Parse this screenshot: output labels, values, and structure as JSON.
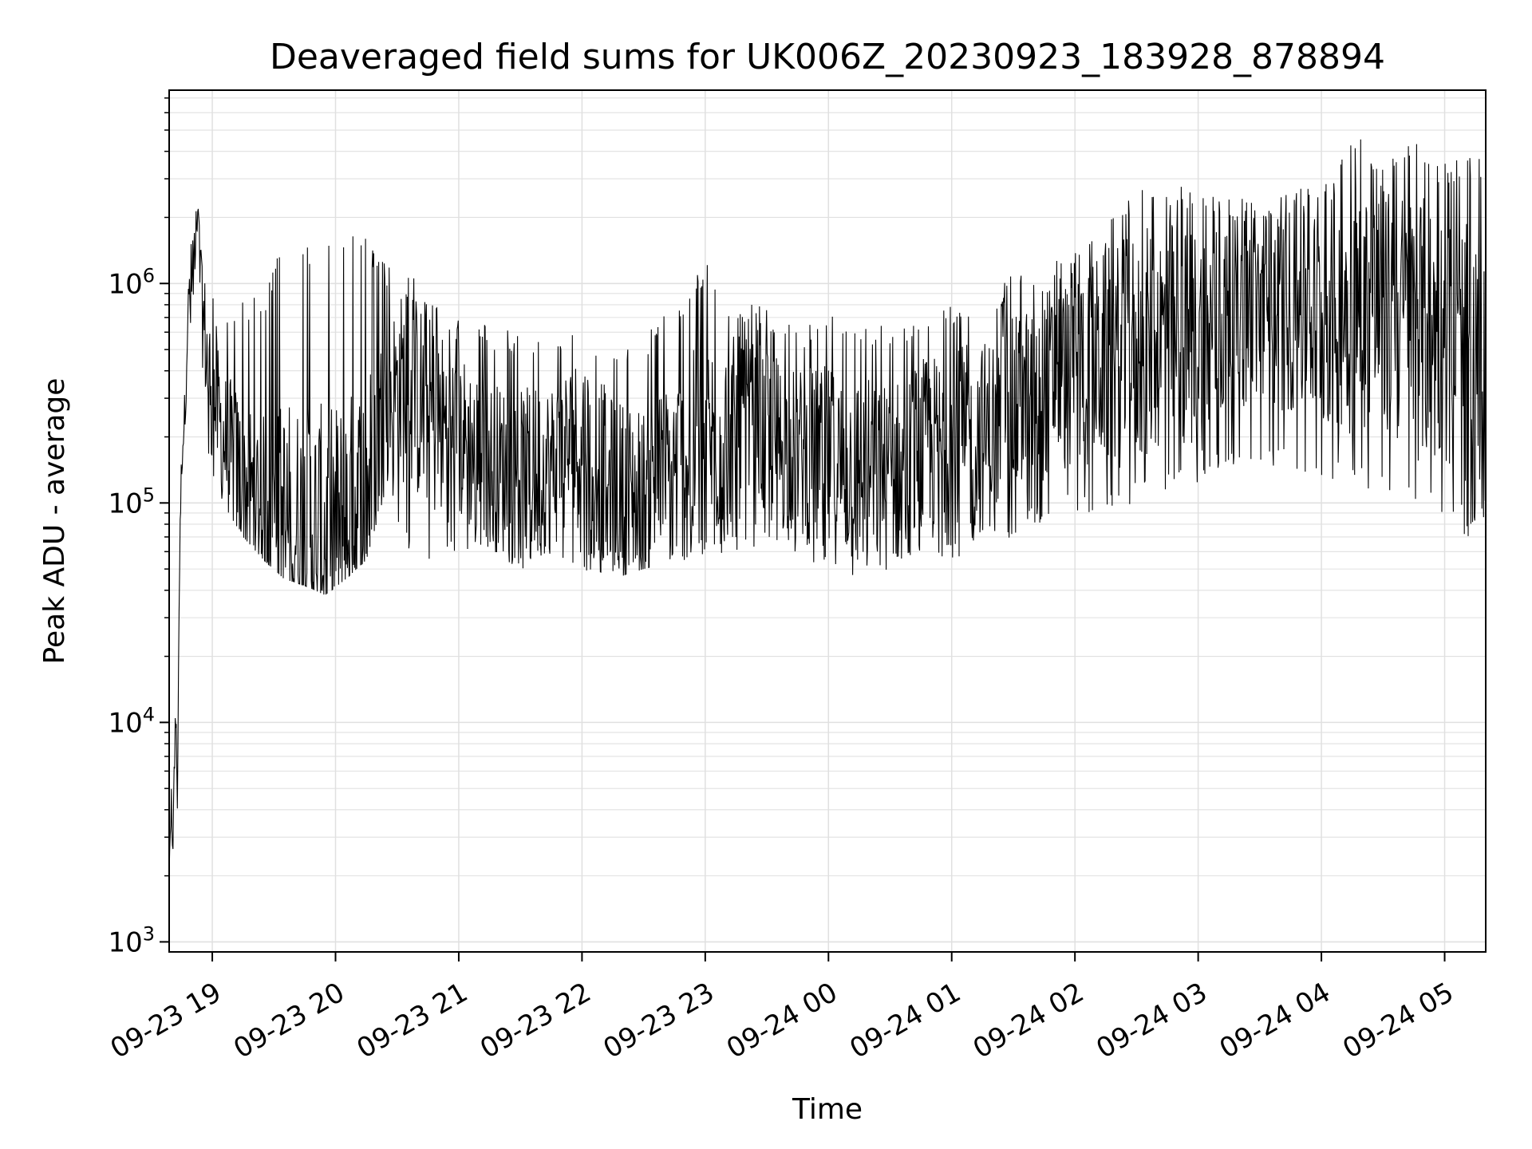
{
  "chart_data": {
    "type": "line",
    "title": "Deaveraged field sums for UK006Z_20230923_183928_878894",
    "xlabel": "Time",
    "ylabel": "Peak ADU - average",
    "yscale": "log",
    "ylim": [
      900,
      7600000
    ],
    "xlim": [
      "2023-09-23 18:39",
      "2023-09-24 05:20"
    ],
    "grid": true,
    "line_color": "#000000",
    "grid_color": "#e0e0e0",
    "x_ticks": [
      {
        "t": "2023-09-23 19:00",
        "label": "09-23 19"
      },
      {
        "t": "2023-09-23 20:00",
        "label": "09-23 20"
      },
      {
        "t": "2023-09-23 21:00",
        "label": "09-23 21"
      },
      {
        "t": "2023-09-23 22:00",
        "label": "09-23 22"
      },
      {
        "t": "2023-09-23 23:00",
        "label": "09-23 23"
      },
      {
        "t": "2023-09-24 00:00",
        "label": "09-24 00"
      },
      {
        "t": "2023-09-24 01:00",
        "label": "09-24 01"
      },
      {
        "t": "2023-09-24 02:00",
        "label": "09-24 02"
      },
      {
        "t": "2023-09-24 03:00",
        "label": "09-24 03"
      },
      {
        "t": "2023-09-24 04:00",
        "label": "09-24 04"
      },
      {
        "t": "2023-09-24 05:00",
        "label": "09-24 05"
      }
    ],
    "y_ticks": [
      {
        "value": 1000,
        "base": "10",
        "exp": "3"
      },
      {
        "value": 10000,
        "base": "10",
        "exp": "4"
      },
      {
        "value": 100000,
        "base": "10",
        "exp": "5"
      },
      {
        "value": 1000000,
        "base": "10",
        "exp": "6"
      }
    ],
    "series": [
      {
        "x": [
          "2023-09-23 18:39",
          "2023-09-23 18:40",
          "2023-09-23 18:41",
          "2023-09-23 18:42",
          "2023-09-23 18:43",
          "2023-09-23 18:44",
          "2023-09-23 18:45",
          "2023-09-23 18:47",
          "2023-09-23 18:48",
          "2023-09-23 18:50",
          "2023-09-23 18:53",
          "2023-09-23 18:55",
          "2023-09-23 18:58",
          "2023-09-23 19:05",
          "2023-09-23 19:15",
          "2023-09-23 19:25",
          "2023-09-23 19:35",
          "2023-09-23 19:45",
          "2023-09-23 19:55",
          "2023-09-23 20:05",
          "2023-09-23 20:15",
          "2023-09-23 20:25",
          "2023-09-23 20:35",
          "2023-09-23 20:45",
          "2023-09-23 21:00",
          "2023-09-23 21:15",
          "2023-09-23 21:30",
          "2023-09-23 21:45",
          "2023-09-23 22:00",
          "2023-09-23 22:15",
          "2023-09-23 22:30",
          "2023-09-23 22:45",
          "2023-09-23 23:00",
          "2023-09-23 23:15",
          "2023-09-23 23:30",
          "2023-09-23 23:45",
          "2023-09-24 00:00",
          "2023-09-24 00:15",
          "2023-09-24 00:30",
          "2023-09-24 00:45",
          "2023-09-24 01:00",
          "2023-09-24 01:15",
          "2023-09-24 01:30",
          "2023-09-24 01:45",
          "2023-09-24 02:00",
          "2023-09-24 02:15",
          "2023-09-24 02:30",
          "2023-09-24 02:45",
          "2023-09-24 03:00",
          "2023-09-24 03:15",
          "2023-09-24 03:30",
          "2023-09-24 03:45",
          "2023-09-24 04:00",
          "2023-09-24 04:15",
          "2023-09-24 04:30",
          "2023-09-24 04:45",
          "2023-09-24 05:00",
          "2023-09-24 05:10",
          "2023-09-24 05:20"
        ],
        "y": [
          2000,
          4000,
          3000,
          12000,
          5000,
          50000,
          150000,
          300000,
          700000,
          900000,
          1500000,
          800000,
          400000,
          200000,
          120000,
          90000,
          80000,
          75000,
          70000,
          80000,
          110000,
          300000,
          350000,
          250000,
          200000,
          150000,
          130000,
          150000,
          200000,
          120000,
          110000,
          140000,
          180000,
          220000,
          200000,
          170000,
          150000,
          140000,
          130000,
          170000,
          180000,
          200000,
          250000,
          350000,
          400000,
          450000,
          500000,
          600000,
          550000,
          700000,
          800000,
          750000,
          700000,
          800000,
          750000,
          650000,
          550000,
          400000,
          300000
        ],
        "y_lower": [
          2000,
          3000,
          2600,
          8000,
          4000,
          35000,
          120000,
          250000,
          400000,
          300000,
          300000,
          250000,
          150000,
          100000,
          70000,
          55000,
          45000,
          42000,
          38000,
          45000,
          55000,
          120000,
          60000,
          55000,
          60000,
          60000,
          50000,
          50000,
          50000,
          45000,
          50000,
          55000,
          55000,
          60000,
          60000,
          55000,
          50000,
          45000,
          45000,
          50000,
          50000,
          60000,
          70000,
          80000,
          90000,
          90000,
          100000,
          110000,
          120000,
          150000,
          150000,
          140000,
          130000,
          120000,
          110000,
          100000,
          90000,
          60000,
          90000
        ],
        "y_upper": [
          2000,
          8000,
          6000,
          13000,
          12000,
          60000,
          200000,
          500000,
          900000,
          1800000,
          2300000,
          1200000,
          1000000,
          700000,
          900000,
          900000,
          1600000,
          1500000,
          1600000,
          1700000,
          1700000,
          1200000,
          1100000,
          1000000,
          700000,
          650000,
          600000,
          550000,
          600000,
          550000,
          600000,
          800000,
          1300000,
          800000,
          800000,
          600000,
          800000,
          700000,
          650000,
          700000,
          800000,
          900000,
          1100000,
          1200000,
          1500000,
          2000000,
          2700000,
          2700000,
          3000000,
          2500000,
          2400000,
          2700000,
          3000000,
          5000000,
          3500000,
          4500000,
          3500000,
          4000000,
          4000000
        ]
      }
    ]
  }
}
